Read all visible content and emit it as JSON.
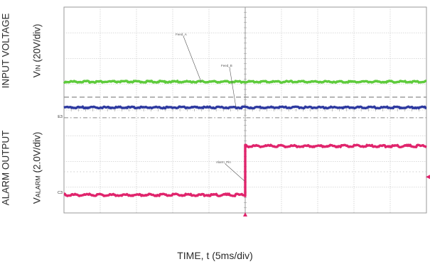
{
  "chart_data": {
    "type": "line",
    "title": "",
    "xlabel": "TIME, t (5ms/div)",
    "ylabel_top_line1": "INPUT VOLTAGE",
    "ylabel_top_line2_main": "V",
    "ylabel_top_line2_sub": "IN",
    "ylabel_top_line2_rest": " (20V/div)",
    "ylabel_bottom_line1": "ALARM OUTPUT",
    "ylabel_bottom_line2_main": "V",
    "ylabel_bottom_line2_sub": "ALARM",
    "ylabel_bottom_line2_rest": " (2.0V/div)",
    "x_divisions": 10,
    "y_divisions": 8,
    "grid": true,
    "trigger_division": 5,
    "channel_markers": [
      "E3",
      "C3"
    ],
    "series": [
      {
        "name": "Feed_A",
        "color": "#5ecb3c",
        "x": [
          0,
          10
        ],
        "y": [
          5.1,
          5.1
        ]
      },
      {
        "name": "Feed_B",
        "color": "#2e3aa0",
        "x": [
          0,
          10
        ],
        "y": [
          4.1,
          4.1
        ]
      },
      {
        "name": "Alarm_Pin",
        "color": "#e0246c",
        "x": [
          0,
          5,
          5,
          10
        ],
        "y": [
          0.7,
          0.7,
          2.6,
          2.6
        ]
      }
    ]
  }
}
